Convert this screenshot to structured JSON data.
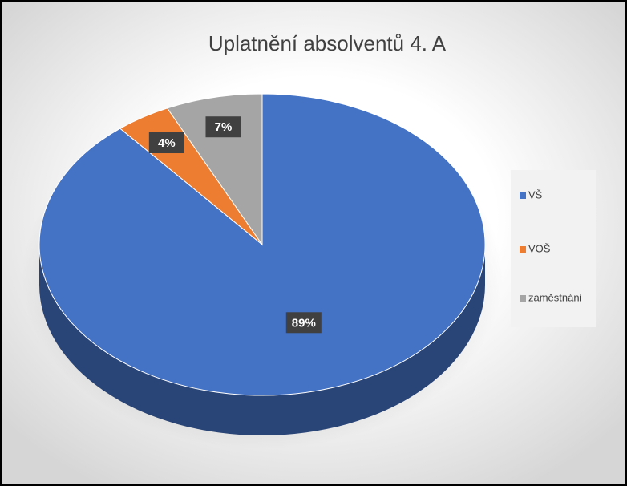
{
  "chart_data": {
    "type": "pie",
    "title": "Uplatnění absolventů 4. A",
    "categories": [
      "VŠ",
      "VOŠ",
      "zaměstnání"
    ],
    "values": [
      89,
      4,
      7
    ],
    "value_labels": [
      "89%",
      "4%",
      "7%"
    ],
    "colors": [
      "#4472c4",
      "#ed7d31",
      "#a5a5a5"
    ],
    "legend": "right"
  }
}
